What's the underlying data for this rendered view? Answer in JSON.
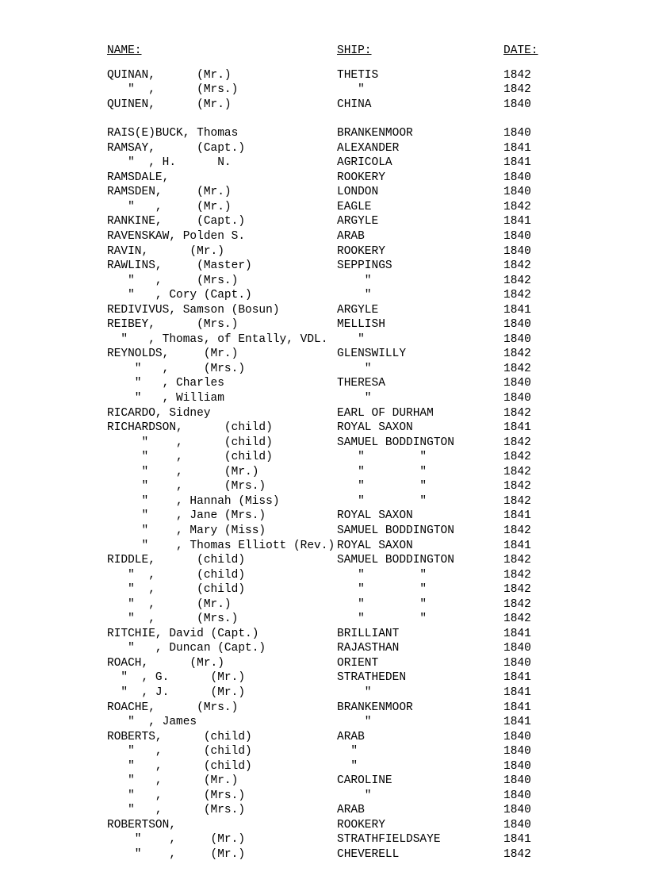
{
  "headers": {
    "name": "NAME:",
    "ship": "SHIP:",
    "date": "DATE:"
  },
  "groups": [
    [
      {
        "name": "QUINAN,      (Mr.)",
        "ship": "THETIS",
        "date": "1842"
      },
      {
        "name": "   \"  ,      (Mrs.)",
        "ship": "   \"",
        "date": "1842"
      },
      {
        "name": "QUINEN,      (Mr.)",
        "ship": "CHINA",
        "date": "1840"
      }
    ],
    [
      {
        "name": "RAIS(E)BUCK, Thomas",
        "ship": "BRANKENMOOR",
        "date": "1840"
      },
      {
        "name": "RAMSAY,      (Capt.)",
        "ship": "ALEXANDER",
        "date": "1841"
      },
      {
        "name": "   \"  , H.      N.",
        "ship": "AGRICOLA",
        "date": "1841"
      },
      {
        "name": "RAMSDALE,",
        "ship": "ROOKERY",
        "date": "1840"
      },
      {
        "name": "RAMSDEN,     (Mr.)",
        "ship": "LONDON",
        "date": "1840"
      },
      {
        "name": "   \"   ,     (Mr.)",
        "ship": "EAGLE",
        "date": "1842"
      },
      {
        "name": "RANKINE,     (Capt.)",
        "ship": "ARGYLE",
        "date": "1841"
      },
      {
        "name": "RAVENSKAW, Polden S.",
        "ship": "ARAB",
        "date": "1840"
      },
      {
        "name": "RAVIN,      (Mr.)",
        "ship": "ROOKERY",
        "date": "1840"
      },
      {
        "name": "RAWLINS,     (Master)",
        "ship": "SEPPINGS",
        "date": "1842"
      },
      {
        "name": "   \"   ,     (Mrs.)",
        "ship": "    \"",
        "date": "1842"
      },
      {
        "name": "   \"   , Cory (Capt.)",
        "ship": "    \"",
        "date": "1842"
      },
      {
        "name": "REDIVIVUS, Samson (Bosun)",
        "ship": "ARGYLE",
        "date": "1841"
      },
      {
        "name": "REIBEY,      (Mrs.)",
        "ship": "MELLISH",
        "date": "1840"
      },
      {
        "name": "  \"   , Thomas, of Entally, VDL.",
        "ship": "   \"",
        "date": "1840"
      },
      {
        "name": "REYNOLDS,     (Mr.)",
        "ship": "GLENSWILLY",
        "date": "1842"
      },
      {
        "name": "    \"   ,     (Mrs.)",
        "ship": "    \"",
        "date": "1842"
      },
      {
        "name": "    \"   , Charles",
        "ship": "THERESA",
        "date": "1840"
      },
      {
        "name": "    \"   , William",
        "ship": "    \"",
        "date": "1840"
      },
      {
        "name": "RICARDO, Sidney",
        "ship": "EARL OF DURHAM",
        "date": "1842"
      },
      {
        "name": "RICHARDSON,      (child)",
        "ship": "ROYAL SAXON",
        "date": "1841"
      },
      {
        "name": "     \"    ,      (child)",
        "ship": "SAMUEL BODDINGTON",
        "date": "1842"
      },
      {
        "name": "     \"    ,      (child)",
        "ship": "   \"        \"",
        "date": "1842"
      },
      {
        "name": "     \"    ,      (Mr.)",
        "ship": "   \"        \"",
        "date": "1842"
      },
      {
        "name": "     \"    ,      (Mrs.)",
        "ship": "   \"        \"",
        "date": "1842"
      },
      {
        "name": "     \"    , Hannah (Miss)",
        "ship": "   \"        \"",
        "date": "1842"
      },
      {
        "name": "     \"    , Jane (Mrs.)",
        "ship": "ROYAL SAXON",
        "date": "1841"
      },
      {
        "name": "     \"    , Mary (Miss)",
        "ship": "SAMUEL BODDINGTON",
        "date": "1842"
      },
      {
        "name": "     \"    , Thomas Elliott (Rev.)",
        "ship": "ROYAL SAXON",
        "date": "1841"
      },
      {
        "name": "RIDDLE,      (child)",
        "ship": "SAMUEL BODDINGTON",
        "date": "1842"
      },
      {
        "name": "   \"  ,      (child)",
        "ship": "   \"        \"",
        "date": "1842"
      },
      {
        "name": "   \"  ,      (child)",
        "ship": "   \"        \"",
        "date": "1842"
      },
      {
        "name": "   \"  ,      (Mr.)",
        "ship": "   \"        \"",
        "date": "1842"
      },
      {
        "name": "   \"  ,      (Mrs.)",
        "ship": "   \"        \"",
        "date": "1842"
      },
      {
        "name": "RITCHIE, David (Capt.)",
        "ship": "BRILLIANT",
        "date": "1841"
      },
      {
        "name": "   \"   , Duncan (Capt.)",
        "ship": "RAJASTHAN",
        "date": "1840"
      },
      {
        "name": "ROACH,      (Mr.)",
        "ship": "ORIENT",
        "date": "1840"
      },
      {
        "name": "  \"  , G.      (Mr.)",
        "ship": "STRATHEDEN",
        "date": "1841"
      },
      {
        "name": "  \"  , J.      (Mr.)",
        "ship": "    \"",
        "date": "1841"
      },
      {
        "name": "ROACHE,      (Mrs.)",
        "ship": "BRANKENMOOR",
        "date": "1841"
      },
      {
        "name": "   \"  , James",
        "ship": "    \"",
        "date": "1841"
      },
      {
        "name": "ROBERTS,      (child)",
        "ship": "ARAB",
        "date": "1840"
      },
      {
        "name": "   \"   ,      (child)",
        "ship": "  \"",
        "date": "1840"
      },
      {
        "name": "   \"   ,      (child)",
        "ship": "  \"",
        "date": "1840"
      },
      {
        "name": "   \"   ,      (Mr.)",
        "ship": "CAROLINE",
        "date": "1840"
      },
      {
        "name": "   \"   ,      (Mrs.)",
        "ship": "    \"",
        "date": "1840"
      },
      {
        "name": "   \"   ,      (Mrs.)",
        "ship": "ARAB",
        "date": "1840"
      },
      {
        "name": "ROBERTSON,",
        "ship": "ROOKERY",
        "date": "1840"
      },
      {
        "name": "    \"    ,     (Mr.)",
        "ship": "STRATHFIELDSAYE",
        "date": "1841"
      },
      {
        "name": "    \"    ,     (Mr.)",
        "ship": "CHEVERELL",
        "date": "1842"
      }
    ]
  ]
}
